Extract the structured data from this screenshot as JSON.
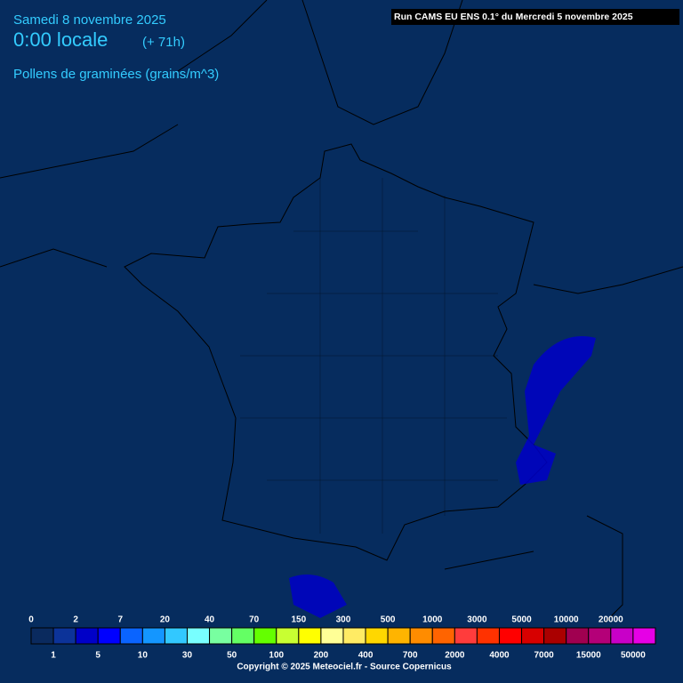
{
  "header": {
    "date": "Samedi 8 novembre 2025",
    "time": "0:00 locale",
    "lead": "(+ 71h)",
    "variable": "Pollens de graminées (grains/m^3)",
    "run": "Run CAMS EU ENS 0.1° du Mercredi 5 novembre 2025"
  },
  "legend": {
    "items": [
      {
        "label": "0",
        "color": "#0a2a5e"
      },
      {
        "label": "1",
        "color": "#0c3399"
      },
      {
        "label": "2",
        "color": "#0000c8"
      },
      {
        "label": "5",
        "color": "#0000ff"
      },
      {
        "label": "7",
        "color": "#0a64ff"
      },
      {
        "label": "10",
        "color": "#1496ff"
      },
      {
        "label": "20",
        "color": "#32c8ff"
      },
      {
        "label": "30",
        "color": "#78ffff"
      },
      {
        "label": "40",
        "color": "#78ffa0"
      },
      {
        "label": "50",
        "color": "#64ff64"
      },
      {
        "label": "70",
        "color": "#64ff00"
      },
      {
        "label": "100",
        "color": "#c8ff32"
      },
      {
        "label": "150",
        "color": "#ffff00"
      },
      {
        "label": "200",
        "color": "#ffff96"
      },
      {
        "label": "300",
        "color": "#ffeb64"
      },
      {
        "label": "400",
        "color": "#ffd700"
      },
      {
        "label": "500",
        "color": "#ffb400"
      },
      {
        "label": "700",
        "color": "#ff8c00"
      },
      {
        "label": "1000",
        "color": "#ff6400"
      },
      {
        "label": "2000",
        "color": "#ff3c3c"
      },
      {
        "label": "3000",
        "color": "#ff3200"
      },
      {
        "label": "4000",
        "color": "#ff0000"
      },
      {
        "label": "5000",
        "color": "#d70000"
      },
      {
        "label": "7000",
        "color": "#aa0000"
      },
      {
        "label": "10000",
        "color": "#a00050"
      },
      {
        "label": "15000",
        "color": "#b40078"
      },
      {
        "label": "20000",
        "color": "#c800c8"
      },
      {
        "label": "50000",
        "color": "#e600e6"
      }
    ]
  },
  "footer": {
    "copyright": "Copyright © 2025 Meteociel.fr - Source Copernicus"
  }
}
